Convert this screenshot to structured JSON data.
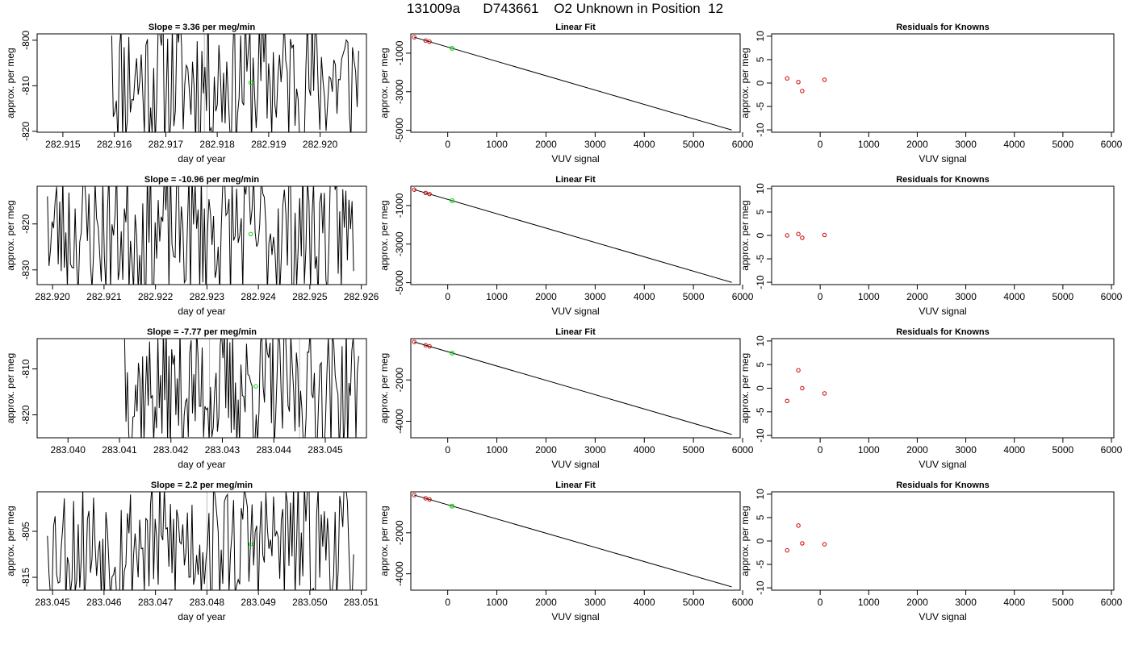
{
  "page_title": "131009a      D743661    O2 Unknown in Position  12",
  "colors": {
    "line": "#000000",
    "known_point": "#cc0000",
    "unknown_point": "#00dd00",
    "vertical_marker": "#bbbbbb"
  },
  "chart_data": [
    {
      "type": "line",
      "row": 1,
      "panel": "time-series",
      "title": "Slope =  3.36  per meg/min",
      "xlabel": "day of year",
      "ylabel": "approx. per meg",
      "xlim": [
        282.9145,
        282.9209
      ],
      "ylim": [
        -820.2,
        -798.6
      ],
      "xticks": [
        282.915,
        282.916,
        282.917,
        282.918,
        282.919,
        282.92
      ],
      "xtick_labels": [
        "282.915",
        "282.916",
        "282.917",
        "282.918",
        "282.919",
        "282.920"
      ],
      "yticks": [
        -820,
        -810,
        -800
      ],
      "ytick_labels": [
        "-820",
        "-810",
        "-800"
      ],
      "series_start": 282.91595,
      "series_end": 282.92075,
      "series_amplitude": 16,
      "series_seed": 11,
      "series_mean": -808.5,
      "series_points": 160,
      "series_initial": -799.0,
      "unknown_point": {
        "x": 282.91865,
        "y": -809.3
      },
      "markers": [
        282.91775
      ]
    },
    {
      "type": "scatter",
      "row": 1,
      "panel": "linear-fit",
      "title": "Linear Fit",
      "xlabel": "VUV signal",
      "ylabel": "approx. per meg",
      "xlim": [
        -750,
        5950
      ],
      "ylim": [
        -5100,
        0
      ],
      "xticks": [
        0,
        1000,
        2000,
        3000,
        4000,
        5000,
        6000
      ],
      "xtick_labels": [
        "0",
        "1000",
        "2000",
        "3000",
        "4000",
        "5000",
        "6000"
      ],
      "yticks": [
        -5000,
        -3000,
        -1000
      ],
      "ytick_labels": [
        "-5000",
        "-3000",
        "-1000"
      ],
      "fit_line": {
        "x": [
          -680,
          5780
        ],
        "y": [
          -175,
          -4985
        ]
      },
      "knowns": [
        {
          "x": -680,
          "y": -175
        },
        {
          "x": -450,
          "y": -347
        },
        {
          "x": -370,
          "y": -407
        }
      ],
      "unknown": {
        "x": 90,
        "y": -750
      }
    },
    {
      "type": "scatter",
      "row": 1,
      "panel": "residuals",
      "title": "Residuals for Knowns",
      "xlabel": "VUV signal",
      "ylabel": "approx. per meg",
      "xlim": [
        -1000,
        6050
      ],
      "ylim": [
        -10.5,
        10.5
      ],
      "xticks": [
        0,
        1000,
        2000,
        3000,
        4000,
        5000,
        6000
      ],
      "xtick_labels": [
        "0",
        "1000",
        "2000",
        "3000",
        "4000",
        "5000",
        "6000"
      ],
      "yticks": [
        -10,
        -5,
        0,
        5,
        10
      ],
      "ytick_labels": [
        "-10",
        "-5",
        "0",
        "5",
        "10"
      ],
      "residuals": [
        {
          "x": -680,
          "y": 1.0
        },
        {
          "x": -450,
          "y": 0.2
        },
        {
          "x": -370,
          "y": -1.7
        },
        {
          "x": 90,
          "y": 0.7
        }
      ]
    },
    {
      "type": "line",
      "row": 2,
      "panel": "time-series",
      "title": "Slope =  -10.96  per meg/min",
      "xlabel": "day of year",
      "ylabel": "approx. per meg",
      "xlim": [
        282.9197,
        282.9261
      ],
      "ylim": [
        -833.2,
        -811.8
      ],
      "xticks": [
        282.92,
        282.921,
        282.922,
        282.923,
        282.924,
        282.925,
        282.926
      ],
      "xtick_labels": [
        "282.920",
        "282.921",
        "282.922",
        "282.923",
        "282.924",
        "282.925",
        "282.926"
      ],
      "yticks": [
        -830,
        -820
      ],
      "ytick_labels": [
        "-830",
        "-820"
      ],
      "series_start": 282.9199,
      "series_end": 282.92585,
      "series_amplitude": 15,
      "series_seed": 23,
      "series_mean": -821.5,
      "series_points": 200,
      "series_initial": -814.0,
      "unknown_point": {
        "x": 282.92385,
        "y": -822.2
      },
      "markers": [
        282.923
      ]
    },
    {
      "type": "scatter",
      "row": 2,
      "panel": "linear-fit",
      "title": "Linear Fit",
      "xlabel": "VUV signal",
      "ylabel": "approx. per meg",
      "xlim": [
        -750,
        5950
      ],
      "ylim": [
        -5100,
        0
      ],
      "xticks": [
        0,
        1000,
        2000,
        3000,
        4000,
        5000,
        6000
      ],
      "xtick_labels": [
        "0",
        "1000",
        "2000",
        "3000",
        "4000",
        "5000",
        "6000"
      ],
      "yticks": [
        -5000,
        -3000,
        -1000
      ],
      "ytick_labels": [
        "-5000",
        "-3000",
        "-1000"
      ],
      "fit_line": {
        "x": [
          -680,
          5780
        ],
        "y": [
          -175,
          -4985
        ]
      },
      "knowns": [
        {
          "x": -680,
          "y": -175
        },
        {
          "x": -450,
          "y": -347
        },
        {
          "x": -370,
          "y": -407
        }
      ],
      "unknown": {
        "x": 90,
        "y": -750
      }
    },
    {
      "type": "scatter",
      "row": 2,
      "panel": "residuals",
      "title": "Residuals for Knowns",
      "xlabel": "VUV signal",
      "ylabel": "approx. per meg",
      "xlim": [
        -1000,
        6050
      ],
      "ylim": [
        -10.5,
        10.5
      ],
      "xticks": [
        0,
        1000,
        2000,
        3000,
        4000,
        5000,
        6000
      ],
      "xtick_labels": [
        "0",
        "1000",
        "2000",
        "3000",
        "4000",
        "5000",
        "6000"
      ],
      "yticks": [
        -10,
        -5,
        0,
        5,
        10
      ],
      "ytick_labels": [
        "-10",
        "-5",
        "0",
        "5",
        "10"
      ],
      "residuals": [
        {
          "x": -680,
          "y": 0.0
        },
        {
          "x": -450,
          "y": 0.3
        },
        {
          "x": -370,
          "y": -0.5
        },
        {
          "x": 90,
          "y": 0.1
        }
      ]
    },
    {
      "type": "line",
      "row": 3,
      "panel": "time-series",
      "title": "Slope =  -7.77  per meg/min",
      "xlabel": "day of year",
      "ylabel": "approx. per meg",
      "xlim": [
        283.0394,
        283.0458
      ],
      "ylim": [
        -825.0,
        -803.4
      ],
      "xticks": [
        283.04,
        283.041,
        283.042,
        283.043,
        283.044,
        283.045
      ],
      "xtick_labels": [
        "283.040",
        "283.041",
        "283.042",
        "283.043",
        "283.044",
        "283.045"
      ],
      "yticks": [
        -820,
        -810
      ],
      "ytick_labels": [
        "-820",
        "-810"
      ],
      "series_start": 283.0411,
      "series_end": 283.04565,
      "series_amplitude": 14,
      "series_seed": 37,
      "series_mean": -814.5,
      "series_points": 170,
      "series_initial": -803.5,
      "unknown_point": {
        "x": 283.04365,
        "y": -813.8
      },
      "markers": [
        283.04275,
        283.0445
      ]
    },
    {
      "type": "scatter",
      "row": 3,
      "panel": "linear-fit",
      "title": "Linear Fit",
      "xlabel": "VUV signal",
      "ylabel": "approx. per meg",
      "xlim": [
        -750,
        5950
      ],
      "ylim": [
        -4800,
        0
      ],
      "xticks": [
        0,
        1000,
        2000,
        3000,
        4000,
        5000,
        6000
      ],
      "xtick_labels": [
        "0",
        "1000",
        "2000",
        "3000",
        "4000",
        "5000",
        "6000"
      ],
      "yticks": [
        -4000,
        -2000
      ],
      "ytick_labels": [
        "-4000",
        "-2000"
      ],
      "fit_line": {
        "x": [
          -680,
          5780
        ],
        "y": [
          -160,
          -4640
        ]
      },
      "knowns": [
        {
          "x": -680,
          "y": -160
        },
        {
          "x": -450,
          "y": -318
        },
        {
          "x": -370,
          "y": -375
        }
      ],
      "unknown": {
        "x": 90,
        "y": -700
      }
    },
    {
      "type": "scatter",
      "row": 3,
      "panel": "residuals",
      "title": "Residuals for Knowns",
      "xlabel": "VUV signal",
      "ylabel": "approx. per meg",
      "xlim": [
        -1000,
        6050
      ],
      "ylim": [
        -10.5,
        10.5
      ],
      "xticks": [
        0,
        1000,
        2000,
        3000,
        4000,
        5000,
        6000
      ],
      "xtick_labels": [
        "0",
        "1000",
        "2000",
        "3000",
        "4000",
        "5000",
        "6000"
      ],
      "yticks": [
        -10,
        -5,
        0,
        5,
        10
      ],
      "ytick_labels": [
        "-10",
        "-5",
        "0",
        "5",
        "10"
      ],
      "residuals": [
        {
          "x": -680,
          "y": -2.7
        },
        {
          "x": -450,
          "y": 3.8
        },
        {
          "x": -370,
          "y": 0.0
        },
        {
          "x": 90,
          "y": -1.1
        }
      ]
    },
    {
      "type": "line",
      "row": 4,
      "panel": "time-series",
      "title": "Slope =  2.2  per meg/min",
      "xlabel": "day of year",
      "ylabel": "approx. per meg",
      "xlim": [
        283.0447,
        283.0511
      ],
      "ylim": [
        -817.8,
        -796.4
      ],
      "xticks": [
        283.045,
        283.046,
        283.047,
        283.048,
        283.049,
        283.05,
        283.051
      ],
      "xtick_labels": [
        "283.045",
        "283.046",
        "283.047",
        "283.048",
        "283.049",
        "283.050",
        "283.051"
      ],
      "yticks": [
        -815,
        -805
      ],
      "ytick_labels": [
        "-815",
        "-805"
      ],
      "series_start": 283.0449,
      "series_end": 283.05085,
      "series_amplitude": 14,
      "series_seed": 53,
      "series_mean": -807.5,
      "series_points": 200,
      "series_initial": -806.0,
      "unknown_point": {
        "x": 283.04885,
        "y": -807.8
      },
      "markers": [
        283.048
      ]
    },
    {
      "type": "scatter",
      "row": 4,
      "panel": "linear-fit",
      "title": "Linear Fit",
      "xlabel": "VUV signal",
      "ylabel": "approx. per meg",
      "xlim": [
        -750,
        5950
      ],
      "ylim": [
        -4800,
        0
      ],
      "xticks": [
        0,
        1000,
        2000,
        3000,
        4000,
        5000,
        6000
      ],
      "xtick_labels": [
        "0",
        "1000",
        "2000",
        "3000",
        "4000",
        "5000",
        "6000"
      ],
      "yticks": [
        -4000,
        -2000
      ],
      "ytick_labels": [
        "-4000",
        "-2000"
      ],
      "fit_line": {
        "x": [
          -680,
          5780
        ],
        "y": [
          -160,
          -4640
        ]
      },
      "knowns": [
        {
          "x": -680,
          "y": -160
        },
        {
          "x": -450,
          "y": -318
        },
        {
          "x": -370,
          "y": -375
        }
      ],
      "unknown": {
        "x": 90,
        "y": -700
      }
    },
    {
      "type": "scatter",
      "row": 4,
      "panel": "residuals",
      "title": "Residuals for Knowns",
      "xlabel": "VUV signal",
      "ylabel": "approx. per meg",
      "xlim": [
        -1000,
        6050
      ],
      "ylim": [
        -10.5,
        10.5
      ],
      "xticks": [
        0,
        1000,
        2000,
        3000,
        4000,
        5000,
        6000
      ],
      "xtick_labels": [
        "0",
        "1000",
        "2000",
        "3000",
        "4000",
        "5000",
        "6000"
      ],
      "yticks": [
        -10,
        -5,
        0,
        5,
        10
      ],
      "ytick_labels": [
        "-10",
        "-5",
        "0",
        "5",
        "10"
      ],
      "residuals": [
        {
          "x": -680,
          "y": -2.0
        },
        {
          "x": -450,
          "y": 3.3
        },
        {
          "x": -370,
          "y": -0.5
        },
        {
          "x": 90,
          "y": -0.7
        }
      ]
    }
  ]
}
